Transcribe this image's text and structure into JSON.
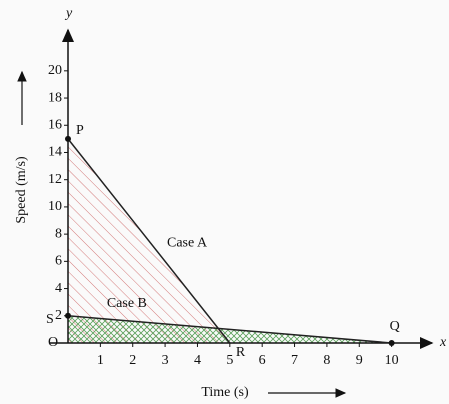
{
  "chart_data": {
    "type": "line",
    "x_axis_name": "x",
    "y_axis_name": "y",
    "xlabel": "Time (s)",
    "ylabel": "Speed (m/s)",
    "origin_label": "O",
    "xlim": [
      0,
      11
    ],
    "ylim": [
      0,
      23
    ],
    "xticks": [
      1,
      2,
      3,
      4,
      5,
      6,
      7,
      8,
      9,
      10
    ],
    "yticks": [
      2,
      4,
      6,
      8,
      10,
      12,
      14,
      16,
      18,
      20
    ],
    "series": [
      {
        "name": "Case A",
        "color": "#222222",
        "hatch": "#d47a7a",
        "x": [
          0,
          5
        ],
        "values": [
          15,
          0
        ]
      },
      {
        "name": "Case B",
        "color": "#222222",
        "hatch": "#5aa05a",
        "x": [
          0,
          10
        ],
        "values": [
          2,
          0
        ]
      }
    ],
    "points": [
      {
        "label": "P",
        "x": 0,
        "y": 15
      },
      {
        "label": "S",
        "x": 0,
        "y": 2
      },
      {
        "label": "R",
        "x": 5,
        "y": 0
      },
      {
        "label": "Q",
        "x": 10,
        "y": 0
      }
    ]
  }
}
